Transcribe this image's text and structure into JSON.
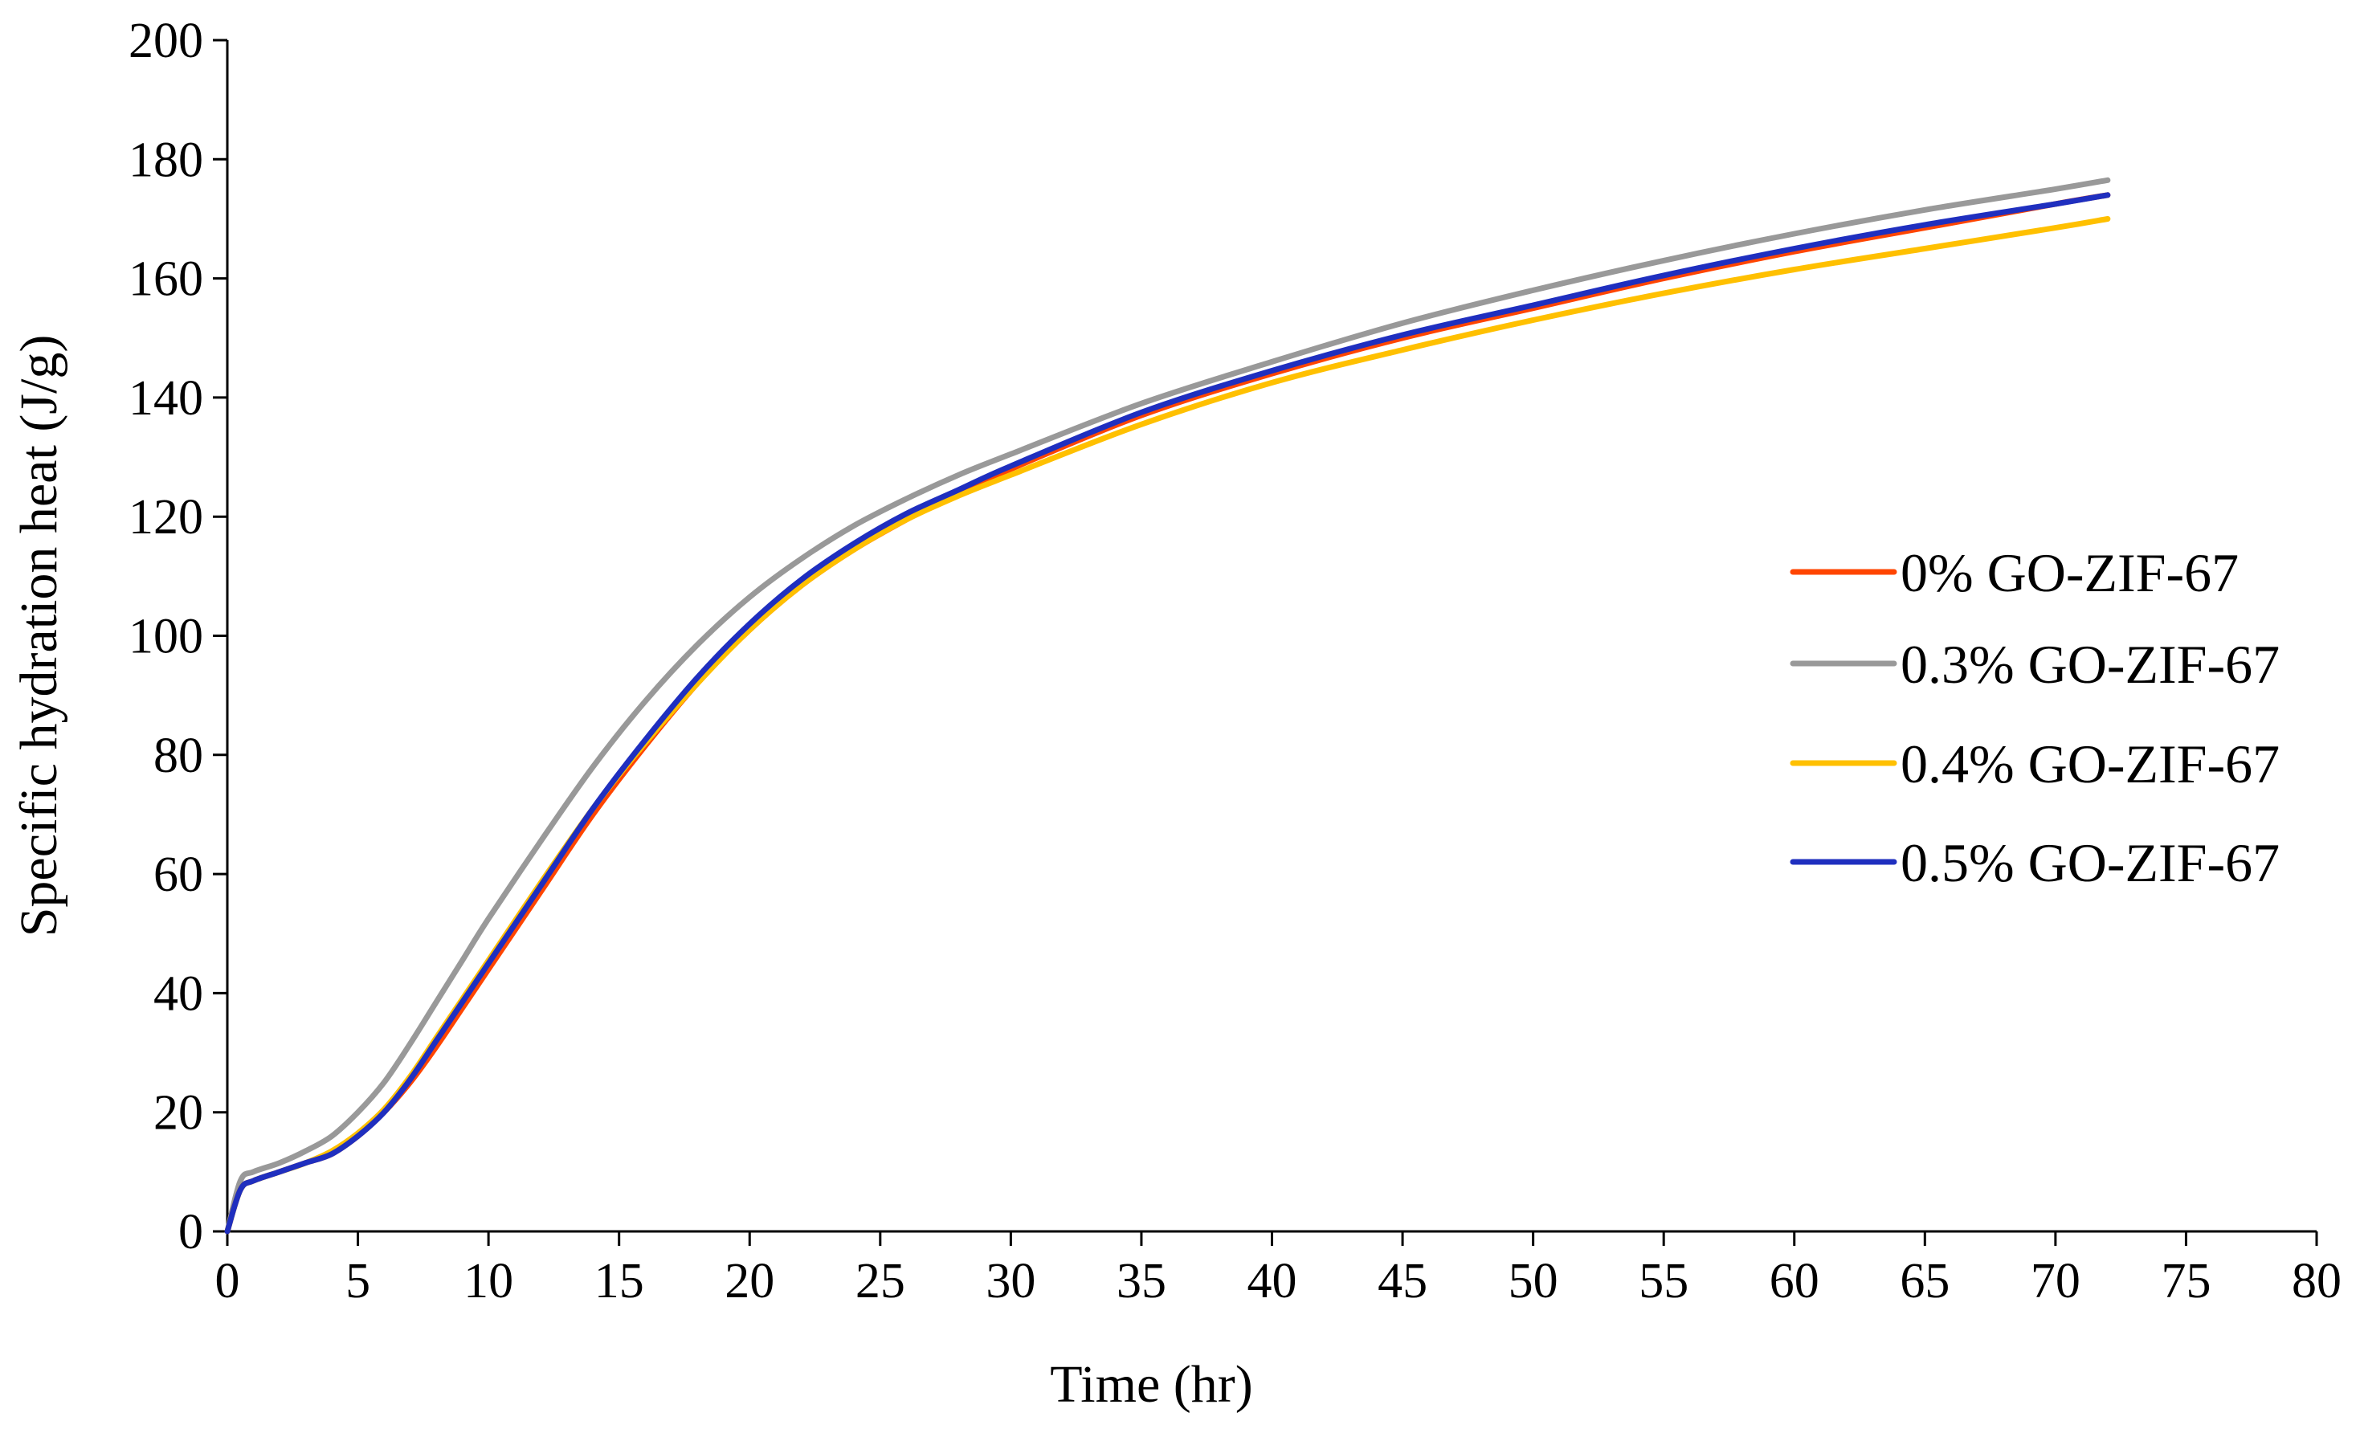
{
  "chart_data": {
    "type": "line",
    "title": "",
    "xlabel": "Time (hr)",
    "ylabel": "Specific hydration heat (J/g)",
    "xlim": [
      0,
      80
    ],
    "ylim": [
      0,
      200
    ],
    "xticks": [
      0,
      5,
      10,
      15,
      20,
      25,
      30,
      35,
      40,
      45,
      50,
      55,
      60,
      65,
      70,
      75,
      80
    ],
    "yticks": [
      0,
      20,
      40,
      60,
      80,
      100,
      120,
      140,
      160,
      180,
      200
    ],
    "grid": false,
    "legend_position": "right",
    "x": [
      0,
      0.5,
      1,
      2,
      3,
      4,
      5,
      6,
      7,
      8,
      9,
      10,
      12,
      14,
      16,
      18,
      20,
      22,
      24,
      26,
      28,
      30,
      35,
      40,
      45,
      50,
      55,
      60,
      65,
      70,
      72
    ],
    "series": [
      {
        "name": "0% GO-ZIF-67",
        "color": "#ff4500",
        "values": [
          0,
          7,
          8.5,
          10,
          11.5,
          13,
          16,
          20,
          25,
          31,
          37.5,
          44,
          57,
          70,
          81.5,
          92,
          101,
          108.5,
          114.5,
          119.5,
          124,
          128,
          137,
          144,
          150,
          155,
          160,
          164.5,
          168.5,
          172.5,
          174
        ]
      },
      {
        "name": "0.3% GO-ZIF-67",
        "color": "#999999",
        "values": [
          0,
          8.5,
          10,
          11.5,
          13.5,
          16,
          20,
          25,
          31.5,
          38.5,
          45.5,
          52.5,
          65.5,
          78,
          89,
          98.5,
          106.5,
          113,
          118.5,
          123,
          127,
          130.5,
          139,
          146,
          152.5,
          158,
          163,
          167.5,
          171.5,
          175,
          176.5
        ]
      },
      {
        "name": "0.4% GO-ZIF-67",
        "color": "#ffc000",
        "values": [
          0,
          7,
          8.5,
          10,
          11.5,
          13.5,
          16.5,
          20.5,
          26,
          32.5,
          39,
          45.5,
          58.5,
          71,
          82,
          92,
          101,
          108.5,
          114.5,
          119.5,
          123.5,
          127,
          135.5,
          142.5,
          148,
          153,
          157.5,
          161.5,
          165,
          168.5,
          170
        ]
      },
      {
        "name": "0.5% GO-ZIF-67",
        "color": "#1f2fbf",
        "values": [
          0,
          7,
          8.5,
          10,
          11.5,
          13,
          16,
          20,
          25.5,
          32,
          38.5,
          45,
          58,
          71,
          82.5,
          93,
          102,
          109.5,
          115.5,
          120.5,
          124.5,
          128.5,
          137.5,
          144.5,
          150.5,
          155.5,
          160.5,
          165,
          169,
          172.5,
          174
        ]
      }
    ]
  }
}
